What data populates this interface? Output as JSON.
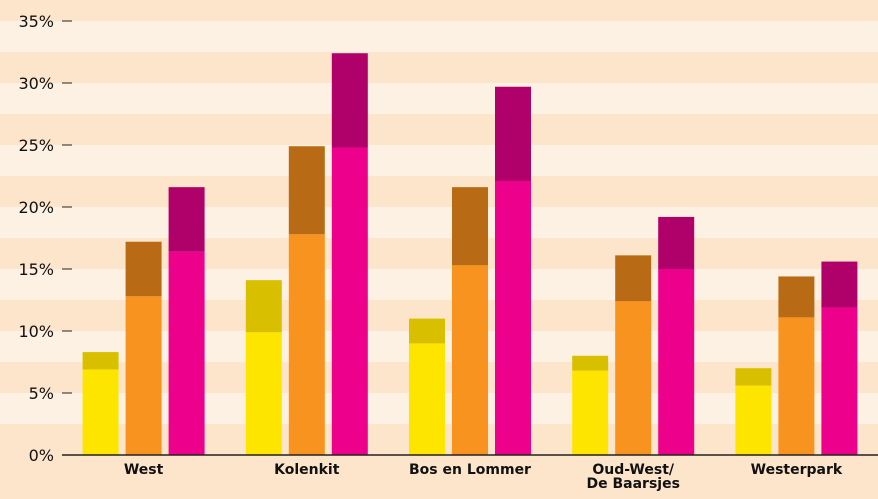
{
  "chart_data": {
    "type": "bar",
    "stacked": true,
    "categories": [
      "West",
      "Kolenkit",
      "Bos en Lommer",
      "Oud-West/ De Baarsjes",
      "Westerpark"
    ],
    "series": [
      {
        "color": "#fde500",
        "stack": 0,
        "values": [
          6.9,
          9.9,
          9.0,
          6.8,
          5.6
        ]
      },
      {
        "color": "#d8c000",
        "stack": 0,
        "values": [
          1.4,
          4.2,
          2.0,
          1.2,
          1.4
        ]
      },
      {
        "color": "#f7931e",
        "stack": 1,
        "values": [
          12.8,
          17.8,
          15.3,
          12.4,
          11.1
        ]
      },
      {
        "color": "#b86b14",
        "stack": 1,
        "values": [
          4.4,
          7.1,
          6.3,
          3.7,
          3.3
        ]
      },
      {
        "color": "#ec008c",
        "stack": 2,
        "values": [
          16.4,
          24.8,
          22.1,
          15.0,
          11.9
        ]
      },
      {
        "color": "#b0006a",
        "stack": 2,
        "values": [
          5.2,
          7.6,
          7.6,
          4.2,
          3.7
        ]
      }
    ],
    "ylim": [
      0,
      35
    ],
    "yticks": [
      {
        "value": 0,
        "label": "0%"
      },
      {
        "value": 5,
        "label": "5%"
      },
      {
        "value": 10,
        "label": "10%"
      },
      {
        "value": 15,
        "label": "15%"
      },
      {
        "value": 20,
        "label": "20%"
      },
      {
        "value": 25,
        "label": "25%"
      },
      {
        "value": 30,
        "label": "30%"
      },
      {
        "value": 35,
        "label": "35%"
      }
    ]
  }
}
